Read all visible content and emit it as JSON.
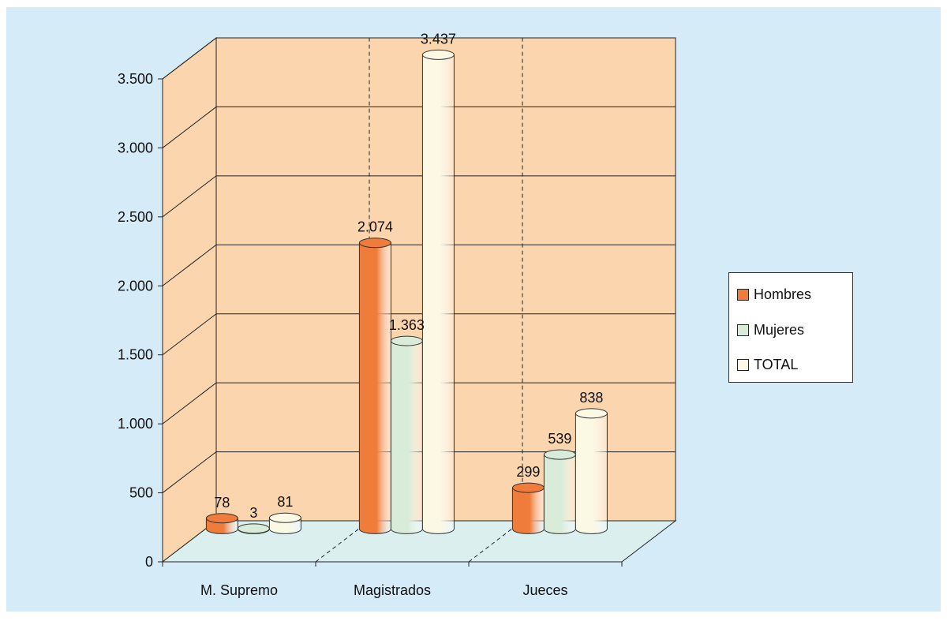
{
  "chart_data": {
    "type": "bar",
    "categories": [
      "M. Supremo",
      "Magistrados",
      "Jueces"
    ],
    "series": [
      {
        "name": "Hombres",
        "color": "#f07c3c",
        "values": [
          78,
          2074,
          299
        ],
        "labels": [
          "78",
          "2.074",
          "299"
        ]
      },
      {
        "name": "Mujeres",
        "color": "#d9ecd9",
        "values": [
          3,
          1363,
          539
        ],
        "labels": [
          "3",
          "1.363",
          "539"
        ]
      },
      {
        "name": "TOTAL",
        "color": "#fbf8e4",
        "values": [
          81,
          3437,
          838
        ],
        "labels": [
          "81",
          "3.437",
          "838"
        ]
      }
    ],
    "y_ticks": [
      {
        "value": 0,
        "label": "0"
      },
      {
        "value": 500,
        "label": "500"
      },
      {
        "value": 1000,
        "label": "1.000"
      },
      {
        "value": 1500,
        "label": "1.500"
      },
      {
        "value": 2000,
        "label": "2.000"
      },
      {
        "value": 2500,
        "label": "2.500"
      },
      {
        "value": 3000,
        "label": "3.000"
      },
      {
        "value": 3500,
        "label": "3.500"
      }
    ],
    "ylim": [
      0,
      3500
    ],
    "grid": true,
    "legend_position": "right",
    "title": "",
    "xlabel": "",
    "ylabel": "",
    "colors": {
      "background": "#d6ebf8",
      "back_wall": "#fbd5ae",
      "side_wall": "#fbd5ae",
      "floor": "#dcefef"
    }
  }
}
